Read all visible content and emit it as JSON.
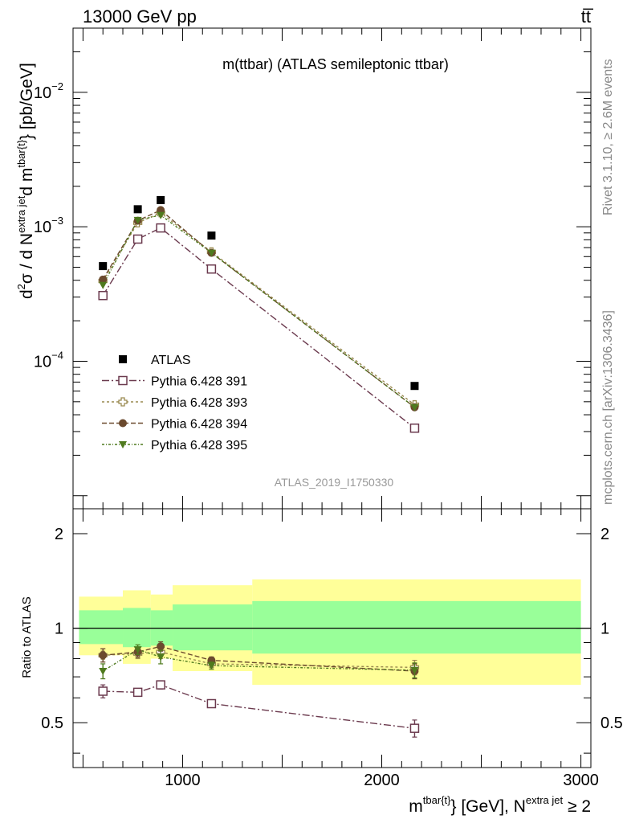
{
  "header": {
    "left": "13000 GeV pp",
    "right": "tt̅"
  },
  "side_labels": {
    "rivet": "Rivet 3.1.10, ≥ 2.6M events",
    "mcplots": "mcplots.cern.ch [arXiv:1306.3436]"
  },
  "chart_data": {
    "type": "scatter",
    "title": "m(ttbar) (ATLAS semileptonic ttbar)",
    "analysis_id": "ATLAS_2019_I1750330",
    "xlabel": {
      "base": "m",
      "sup1": "tbar{t}",
      "mid": "} [GeV], N",
      "sup2": "extra jet",
      "tail": " ≥ 2"
    },
    "ylabel": {
      "d1": "d",
      "s1": "2",
      "sigma": "σ / d N",
      "s2": "extra jet",
      "d2": "d m",
      "s3": "tbar{t}",
      "tail": "} [pb/GeV]"
    },
    "ratio_ylabel": "Ratio to ATLAS",
    "xlim": [
      450,
      3050
    ],
    "xticks": [
      {
        "value": 1000,
        "label": "1000"
      },
      {
        "value": 2000,
        "label": "2000"
      },
      {
        "value": 3000,
        "label": "3000"
      }
    ],
    "main_ylim": [
      8e-06,
      0.03
    ],
    "main_yscale": "log",
    "main_yticks": [
      {
        "value": 0.01,
        "base": "10",
        "exp": "−2"
      },
      {
        "value": 0.001,
        "base": "10",
        "exp": "−3"
      },
      {
        "value": 0.0001,
        "base": "10",
        "exp": "−4"
      }
    ],
    "ratio_ylim": [
      0.36,
      2.4
    ],
    "ratio_yscale": "log",
    "ratio_yticks": [
      {
        "value": 0.5,
        "label": "0.5"
      },
      {
        "value": 1,
        "label": "1"
      },
      {
        "value": 2,
        "label": "2"
      }
    ],
    "x": [
      600,
      775,
      890,
      1145,
      2165
    ],
    "data": {
      "name": "ATLAS",
      "color": "#000000",
      "marker": "filled-square",
      "values": [
        0.00051,
        0.00135,
        0.00158,
        0.00086,
        6.55e-05
      ]
    },
    "bins": [
      {
        "x0": 480,
        "x1": 700,
        "band_inner": [
          0.89,
          1.14
        ],
        "band_outer": [
          0.82,
          1.26
        ]
      },
      {
        "x0": 700,
        "x1": 840,
        "band_inner": [
          0.87,
          1.16
        ],
        "band_outer": [
          0.77,
          1.32
        ]
      },
      {
        "x0": 840,
        "x1": 950,
        "band_inner": [
          0.88,
          1.14
        ],
        "band_outer": [
          0.8,
          1.28
        ]
      },
      {
        "x0": 950,
        "x1": 1350,
        "band_inner": [
          0.85,
          1.19
        ],
        "band_outer": [
          0.73,
          1.37
        ]
      },
      {
        "x0": 1350,
        "x1": 3000,
        "band_inner": [
          0.83,
          1.22
        ],
        "band_outer": [
          0.66,
          1.43
        ]
      }
    ],
    "band_colors": {
      "inner": "#99ff99",
      "outer": "#ffff99"
    },
    "series": [
      {
        "name": "Pythia 6.428 391",
        "color": "#6b3a4e",
        "dash": "9,3,2,3",
        "marker": "open-square",
        "values": [
          0.000308,
          0.00081,
          0.00098,
          0.000485,
          3.18e-05
        ],
        "ratio": [
          0.63,
          0.625,
          0.66,
          0.575,
          0.48
        ],
        "ratio_err": [
          0.03,
          0.015,
          0.02,
          0.01,
          0.03
        ]
      },
      {
        "name": "Pythia 6.428 393",
        "color": "#9a8a50",
        "dash": "3,3",
        "marker": "open-cross",
        "values": [
          0.000395,
          0.00107,
          0.00127,
          0.00065,
          4.75e-05
        ],
        "ratio": [
          0.82,
          0.83,
          0.84,
          0.77,
          0.75
        ],
        "ratio_err": [
          0.04,
          0.03,
          0.04,
          0.02,
          0.04
        ]
      },
      {
        "name": "Pythia 6.428 394",
        "color": "#6b4a2e",
        "dash": "6,3",
        "marker": "filled-circle",
        "values": [
          0.000405,
          0.00111,
          0.00133,
          0.00064,
          4.55e-05
        ],
        "ratio": [
          0.82,
          0.84,
          0.875,
          0.79,
          0.73
        ],
        "ratio_err": [
          0.04,
          0.03,
          0.03,
          0.02,
          0.04
        ]
      },
      {
        "name": "Pythia 6.428 395",
        "color": "#4f7a1e",
        "dash": "3,2,1,2",
        "marker": "filled-triangle-down",
        "values": [
          0.000368,
          0.00112,
          0.00122,
          0.00064,
          4.55e-05
        ],
        "ratio": [
          0.73,
          0.855,
          0.81,
          0.76,
          0.735
        ],
        "ratio_err": [
          0.04,
          0.03,
          0.04,
          0.02,
          0.04
        ]
      }
    ],
    "legend": {
      "placement": "lower-left"
    }
  }
}
